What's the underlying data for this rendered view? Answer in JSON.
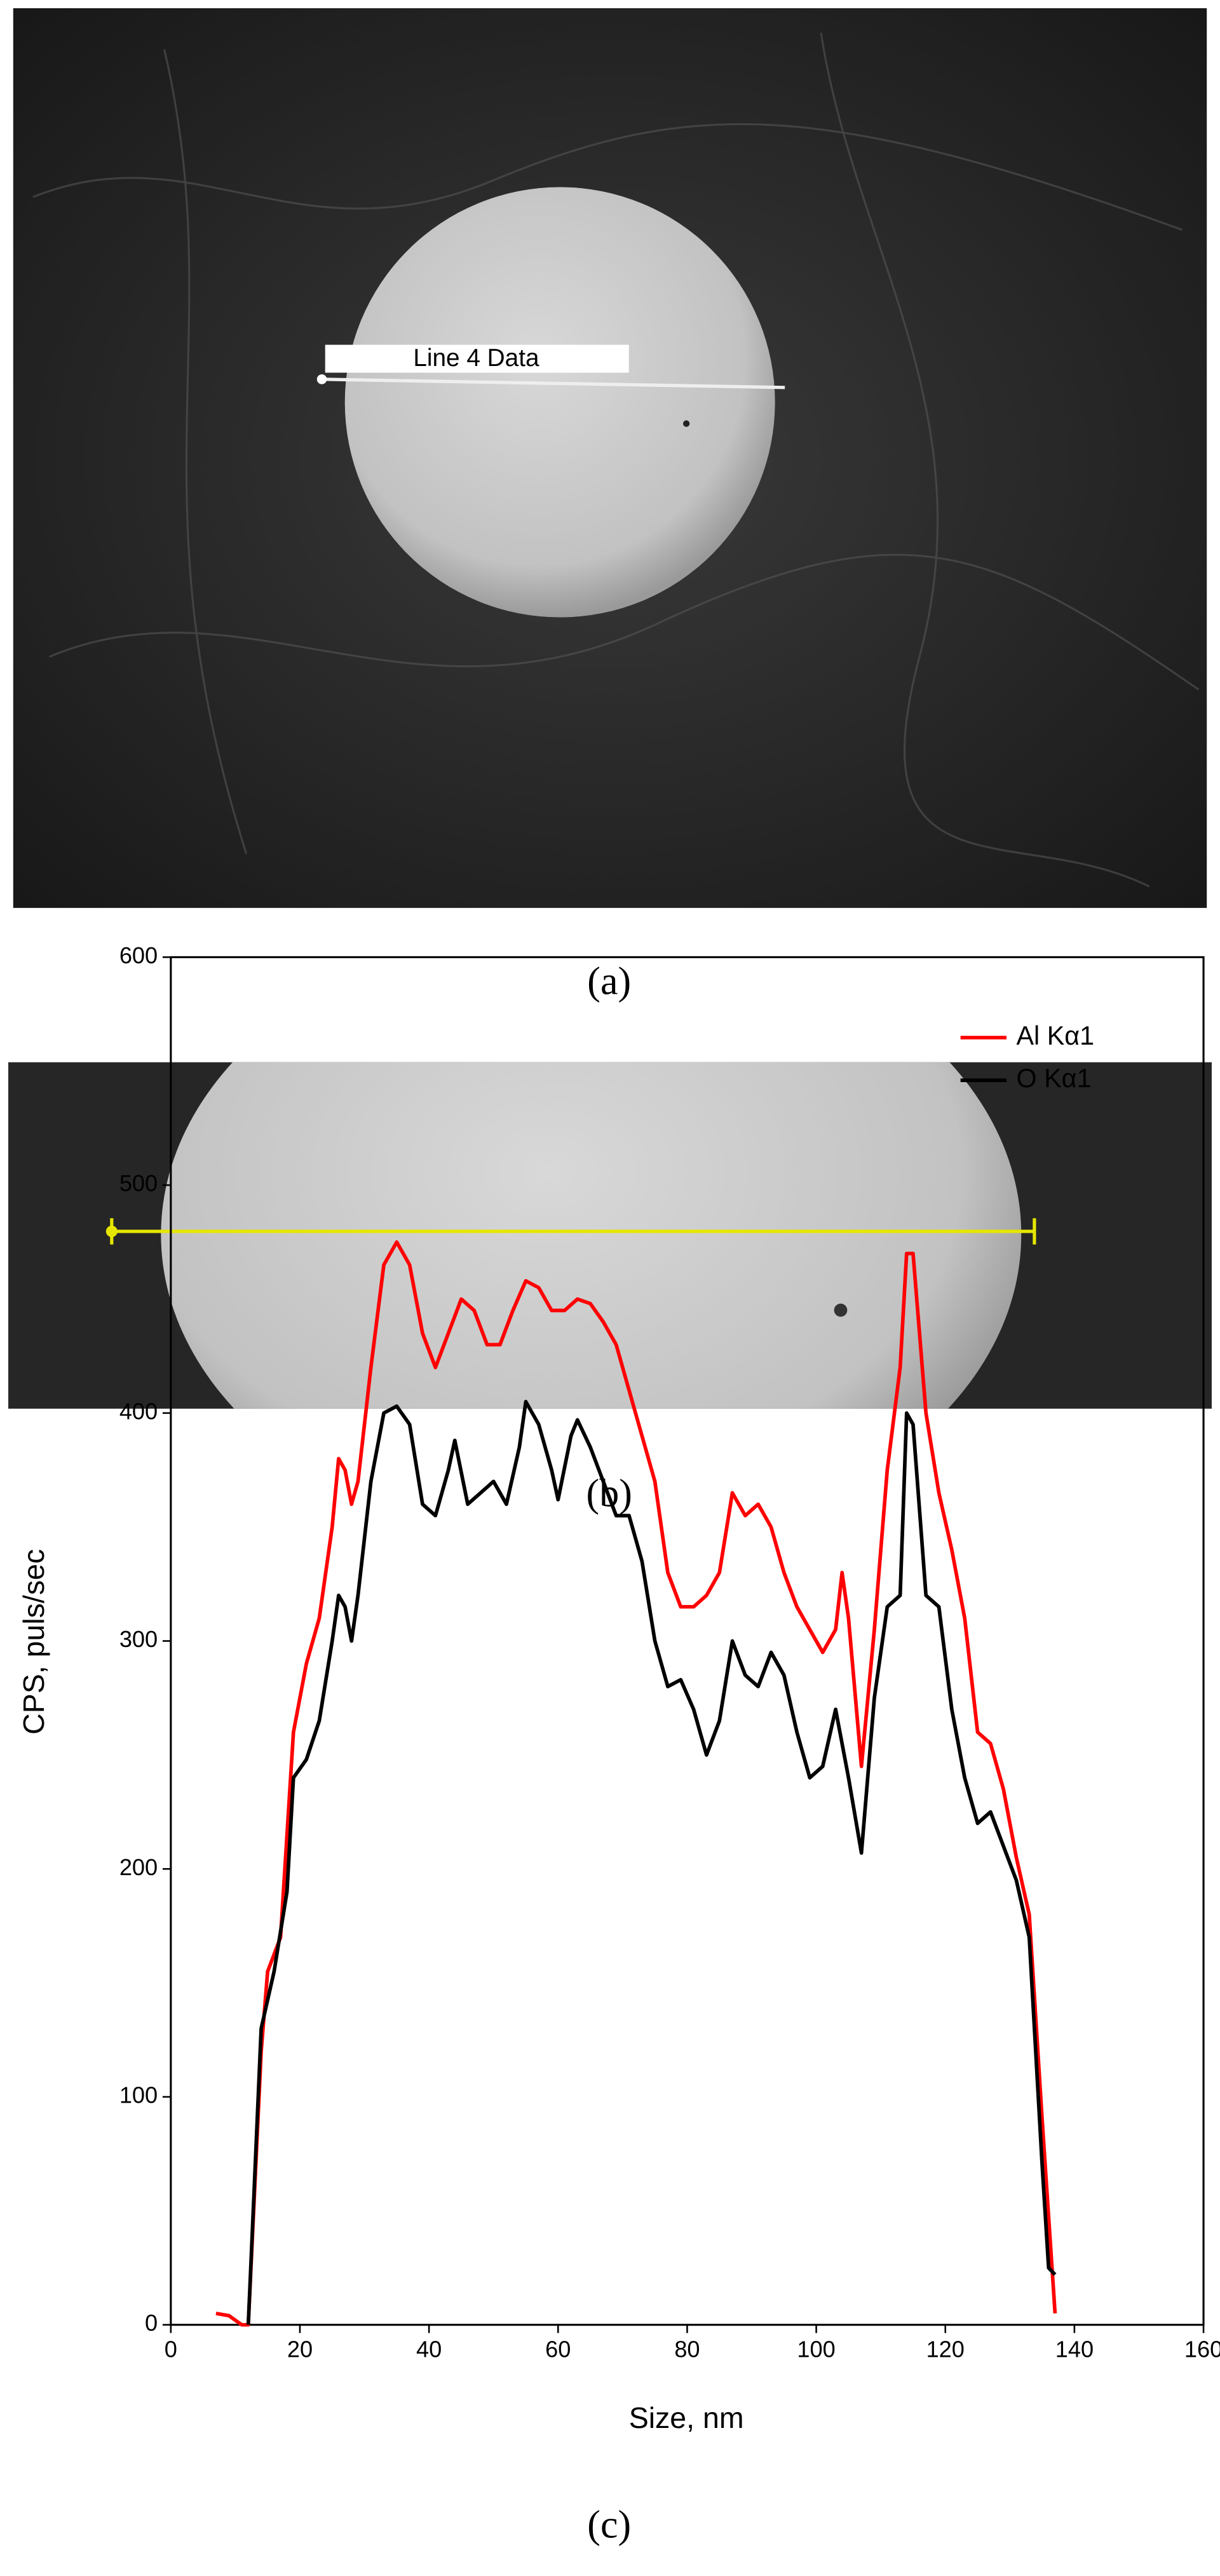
{
  "panels": [
    {
      "label": "(a)",
      "annotation": "Line 4 Data"
    },
    {
      "label": "(b)"
    }
  ],
  "chart_data": {
    "type": "line",
    "caption": "(c)",
    "xlabel": "Size, nm",
    "ylabel": "CPS, puls/sec",
    "xlim": [
      0,
      160
    ],
    "xticks": [
      0,
      20,
      40,
      60,
      80,
      100,
      120,
      140,
      160
    ],
    "ylim": [
      0,
      600
    ],
    "yticks": [
      0,
      100,
      200,
      300,
      400,
      500,
      600
    ],
    "legend": "upper right",
    "series": [
      {
        "name": "Al Kα1",
        "color": "#ff0000",
        "x": [
          7,
          9,
          11,
          12,
          14,
          15,
          17,
          19,
          21,
          23,
          25,
          26,
          27,
          28,
          29,
          31,
          33,
          35,
          37,
          39,
          41,
          43,
          45,
          47,
          49,
          51,
          53,
          55,
          57,
          59,
          61,
          63,
          65,
          67,
          69,
          71,
          73,
          75,
          77,
          79,
          81,
          83,
          85,
          87,
          89,
          91,
          93,
          95,
          97,
          99,
          101,
          103,
          104,
          105,
          107,
          109,
          111,
          113,
          114,
          115,
          117,
          119,
          121,
          123,
          125,
          127,
          129,
          131,
          133,
          135,
          137
        ],
        "values": [
          5,
          4,
          0,
          0,
          120,
          155,
          170,
          260,
          290,
          310,
          350,
          380,
          375,
          360,
          370,
          420,
          465,
          475,
          465,
          435,
          420,
          435,
          450,
          445,
          430,
          430,
          445,
          458,
          455,
          445,
          445,
          450,
          448,
          440,
          430,
          410,
          390,
          370,
          330,
          315,
          315,
          320,
          330,
          365,
          355,
          360,
          350,
          330,
          315,
          305,
          295,
          305,
          330,
          310,
          245,
          305,
          375,
          420,
          470,
          470,
          400,
          365,
          340,
          310,
          260,
          255,
          235,
          205,
          180,
          90,
          5
        ]
      },
      {
        "name": "O Kα1",
        "color": "#000000",
        "x": [
          12,
          14,
          16,
          18,
          19,
          21,
          23,
          25,
          26,
          27,
          28,
          29,
          31,
          33,
          35,
          37,
          39,
          41,
          43,
          44,
          46,
          48,
          50,
          52,
          54,
          55,
          57,
          59,
          60,
          62,
          63,
          65,
          67,
          69,
          71,
          73,
          75,
          77,
          79,
          81,
          83,
          85,
          87,
          89,
          91,
          93,
          95,
          97,
          99,
          101,
          103,
          105,
          107,
          109,
          111,
          113,
          114,
          115,
          117,
          119,
          121,
          123,
          125,
          127,
          129,
          131,
          133,
          135,
          136,
          137
        ],
        "values": [
          0,
          130,
          155,
          190,
          240,
          248,
          265,
          300,
          320,
          315,
          300,
          320,
          370,
          400,
          403,
          395,
          360,
          355,
          375,
          388,
          360,
          365,
          370,
          360,
          385,
          405,
          395,
          375,
          362,
          390,
          397,
          385,
          370,
          355,
          355,
          335,
          300,
          280,
          283,
          270,
          250,
          265,
          300,
          285,
          280,
          295,
          285,
          260,
          240,
          245,
          270,
          240,
          207,
          275,
          315,
          320,
          400,
          395,
          320,
          315,
          270,
          240,
          220,
          225,
          210,
          195,
          170,
          70,
          25,
          22
        ]
      }
    ]
  }
}
